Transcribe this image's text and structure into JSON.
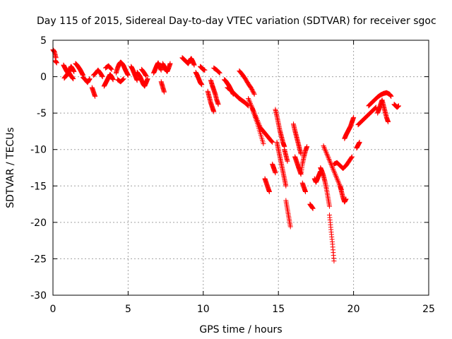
{
  "chart_data": {
    "type": "scatter",
    "title": "Day 115 of 2015, Sidereal Day-to-day VTEC variation (SDTVAR) for receiver sgoc",
    "xlabel": "GPS time / hours",
    "ylabel": "SDTVAR / TECUs",
    "xlim": [
      0,
      25
    ],
    "ylim": [
      -30,
      5
    ],
    "xticks": [
      0,
      5,
      10,
      15,
      20,
      25
    ],
    "yticks": [
      5,
      0,
      -5,
      -10,
      -15,
      -20,
      -25,
      -30
    ],
    "grid": true,
    "marker": "+",
    "series_color": "#ff0000",
    "segments": [
      {
        "x": [
          0.0,
          0.1,
          0.2
        ],
        "y": [
          3.7,
          3.4,
          2.6
        ]
      },
      {
        "x": [
          0.15,
          0.25
        ],
        "y": [
          2.2,
          1.9
        ]
      },
      {
        "x": [
          0.7,
          0.8,
          0.9,
          1.0,
          1.1,
          1.2,
          1.3,
          1.4
        ],
        "y": [
          1.6,
          1.2,
          0.8,
          0.5,
          0.9,
          1.4,
          1.1,
          0.7
        ]
      },
      {
        "x": [
          0.75,
          0.9,
          1.05,
          1.2,
          1.35
        ],
        "y": [
          -0.2,
          0.2,
          0.6,
          0.1,
          -0.3
        ]
      },
      {
        "x": [
          1.5,
          1.6,
          1.7,
          1.8,
          1.9,
          2.0
        ],
        "y": [
          1.8,
          1.6,
          1.3,
          1.0,
          0.6,
          0.2
        ]
      },
      {
        "x": [
          2.0,
          2.15,
          2.3,
          2.45
        ],
        "y": [
          -0.1,
          -0.4,
          -0.8,
          -0.3
        ]
      },
      {
        "x": [
          2.6,
          2.7,
          2.8
        ],
        "y": [
          -1.5,
          -2.1,
          -2.7
        ]
      },
      {
        "x": [
          2.7,
          2.85,
          3.0,
          3.15,
          3.3
        ],
        "y": [
          0.2,
          0.5,
          0.9,
          0.5,
          0.0
        ]
      },
      {
        "x": [
          3.4,
          3.5,
          3.6,
          3.7,
          3.8,
          3.9,
          4.0
        ],
        "y": [
          -1.3,
          -0.9,
          -0.5,
          -0.1,
          0.3,
          0.0,
          -0.4
        ]
      },
      {
        "x": [
          3.5,
          3.7,
          3.9
        ],
        "y": [
          1.2,
          1.5,
          1.0
        ]
      },
      {
        "x": [
          4.2,
          4.3,
          4.4,
          4.5,
          4.6,
          4.7,
          4.8,
          4.9,
          5.0
        ],
        "y": [
          0.5,
          1.2,
          1.7,
          2.0,
          1.8,
          1.5,
          1.0,
          0.6,
          0.2
        ]
      },
      {
        "x": [
          4.3,
          4.5,
          4.7
        ],
        "y": [
          -0.4,
          -0.7,
          -0.3
        ]
      },
      {
        "x": [
          5.2,
          5.3,
          5.4,
          5.5,
          5.6
        ],
        "y": [
          1.4,
          1.0,
          0.5,
          0.0,
          -0.5
        ]
      },
      {
        "x": [
          5.6,
          5.7,
          5.8,
          5.9,
          6.0,
          6.1,
          6.2,
          6.3
        ],
        "y": [
          0.6,
          0.3,
          0.0,
          -0.5,
          -1.0,
          -1.3,
          -0.8,
          -0.3
        ]
      },
      {
        "x": [
          5.9,
          6.05,
          6.2
        ],
        "y": [
          1.0,
          0.6,
          0.1
        ]
      },
      {
        "x": [
          6.7,
          6.8,
          6.9,
          7.0,
          7.1,
          7.2
        ],
        "y": [
          0.5,
          1.0,
          1.5,
          1.9,
          1.4,
          0.9
        ]
      },
      {
        "x": [
          7.2,
          7.3,
          7.4
        ],
        "y": [
          -0.7,
          -1.4,
          -2.1
        ]
      },
      {
        "x": [
          7.3,
          7.4,
          7.5,
          7.6,
          7.7,
          7.8
        ],
        "y": [
          1.8,
          1.4,
          1.0,
          0.7,
          1.2,
          1.8
        ]
      },
      {
        "x": [
          8.6,
          8.7,
          8.8,
          8.9,
          9.0,
          9.1,
          9.2,
          9.3,
          9.4
        ],
        "y": [
          2.6,
          2.4,
          2.2,
          2.0,
          1.8,
          2.2,
          2.5,
          2.1,
          1.6
        ]
      },
      {
        "x": [
          9.5,
          9.6,
          9.7,
          9.8,
          9.9
        ],
        "y": [
          0.6,
          0.2,
          -0.3,
          -0.8,
          -1.1
        ]
      },
      {
        "x": [
          9.8,
          9.9,
          10.0,
          10.1
        ],
        "y": [
          1.4,
          1.2,
          1.0,
          0.9
        ]
      },
      {
        "x": [
          10.3,
          10.4,
          10.5,
          10.6,
          10.7
        ],
        "y": [
          -2.0,
          -2.8,
          -3.6,
          -4.2,
          -4.8
        ]
      },
      {
        "x": [
          10.5,
          10.6,
          10.7,
          10.8,
          10.9,
          11.0
        ],
        "y": [
          -0.5,
          -1.2,
          -1.8,
          -2.4,
          -3.2,
          -3.8
        ]
      },
      {
        "x": [
          10.7,
          10.9,
          11.1
        ],
        "y": [
          1.2,
          0.9,
          0.5
        ]
      },
      {
        "x": [
          11.4,
          11.5,
          11.6,
          11.7,
          11.8,
          11.9,
          12.0
        ],
        "y": [
          -0.4,
          -0.6,
          -0.9,
          -1.2,
          -1.6,
          -2.0,
          -2.4
        ]
      },
      {
        "x": [
          11.6,
          11.8,
          12.0,
          12.2,
          12.4,
          12.6,
          12.8,
          13.0
        ],
        "y": [
          -1.5,
          -1.8,
          -2.2,
          -2.6,
          -3.0,
          -3.3,
          -3.6,
          -4.0
        ]
      },
      {
        "x": [
          12.4,
          12.6,
          12.8,
          13.0,
          13.2,
          13.4
        ],
        "y": [
          0.8,
          0.3,
          -0.3,
          -1.0,
          -1.6,
          -2.4
        ]
      },
      {
        "x": [
          13.0,
          13.2,
          13.4,
          13.6,
          13.8,
          14.0,
          14.2,
          14.4,
          14.6
        ],
        "y": [
          -3.0,
          -4.0,
          -5.0,
          -6.0,
          -7.0,
          -7.5,
          -8.0,
          -8.5,
          -9.0
        ]
      },
      {
        "x": [
          13.2,
          13.4,
          13.6,
          13.8,
          14.0
        ],
        "y": [
          -4.0,
          -5.2,
          -6.4,
          -7.8,
          -9.2
        ]
      },
      {
        "x": [
          14.1,
          14.2,
          14.3,
          14.4
        ],
        "y": [
          -14.0,
          -14.6,
          -15.2,
          -15.8
        ]
      },
      {
        "x": [
          14.6,
          14.7,
          14.8
        ],
        "y": [
          -12.0,
          -12.6,
          -13.2
        ]
      },
      {
        "x": [
          14.8,
          14.9,
          15.0,
          15.1,
          15.2,
          15.3,
          15.4
        ],
        "y": [
          -4.5,
          -5.4,
          -6.4,
          -7.4,
          -8.2,
          -9.0,
          -9.6
        ]
      },
      {
        "x": [
          14.9,
          15.0,
          15.1,
          15.2,
          15.3,
          15.4,
          15.5
        ],
        "y": [
          -9.0,
          -10.0,
          -11.0,
          -12.0,
          -13.0,
          -14.0,
          -15.0
        ]
      },
      {
        "x": [
          15.4,
          15.5,
          15.6
        ],
        "y": [
          -10.0,
          -10.8,
          -11.6
        ]
      },
      {
        "x": [
          15.5,
          15.6,
          15.7,
          15.8
        ],
        "y": [
          -17.0,
          -18.2,
          -19.4,
          -20.6
        ]
      },
      {
        "x": [
          16.0,
          16.1,
          16.2,
          16.3,
          16.4,
          16.5
        ],
        "y": [
          -6.5,
          -7.4,
          -8.2,
          -9.0,
          -9.8,
          -10.6
        ]
      },
      {
        "x": [
          16.1,
          16.2,
          16.3,
          16.4,
          16.5,
          16.6,
          16.7,
          16.8,
          16.9
        ],
        "y": [
          -11.0,
          -11.6,
          -12.2,
          -12.8,
          -13.4,
          -12.0,
          -11.0,
          -10.2,
          -9.6
        ]
      },
      {
        "x": [
          16.6,
          16.7,
          16.8
        ],
        "y": [
          -14.6,
          -15.2,
          -15.8
        ]
      },
      {
        "x": [
          17.1,
          17.2,
          17.3
        ],
        "y": [
          -17.5,
          -17.8,
          -18.1
        ]
      },
      {
        "x": [
          17.4,
          17.5,
          17.6,
          17.7,
          17.8
        ],
        "y": [
          -14.0,
          -14.5,
          -14.0,
          -13.5,
          -13.0
        ]
      },
      {
        "x": [
          17.8,
          17.9,
          18.0,
          18.1,
          18.2,
          18.3,
          18.4
        ],
        "y": [
          -12.5,
          -13.0,
          -13.6,
          -14.4,
          -15.4,
          -16.6,
          -17.8
        ]
      },
      {
        "x": [
          18.4,
          18.5,
          18.6,
          18.7
        ],
        "y": [
          -19.0,
          -21.0,
          -23.0,
          -25.3
        ]
      },
      {
        "x": [
          18.0,
          18.2,
          18.4,
          18.6,
          18.8,
          19.0,
          19.2
        ],
        "y": [
          -9.5,
          -10.5,
          -11.5,
          -12.5,
          -13.5,
          -14.5,
          -15.5
        ]
      },
      {
        "x": [
          18.7,
          18.9,
          19.1,
          19.3,
          19.5,
          19.7,
          19.9
        ],
        "y": [
          -12.0,
          -11.8,
          -12.2,
          -12.6,
          -12.2,
          -11.6,
          -11.0
        ]
      },
      {
        "x": [
          19.1,
          19.2,
          19.3,
          19.4,
          19.5
        ],
        "y": [
          -15.0,
          -15.8,
          -16.6,
          -17.2,
          -16.8
        ]
      },
      {
        "x": [
          19.4,
          19.5,
          19.6,
          19.7,
          19.8,
          19.9,
          20.0
        ],
        "y": [
          -8.5,
          -8.0,
          -7.6,
          -7.2,
          -6.8,
          -6.2,
          -5.6
        ]
      },
      {
        "x": [
          20.2,
          20.3,
          20.4
        ],
        "y": [
          -9.8,
          -9.4,
          -9.0
        ]
      },
      {
        "x": [
          20.3,
          20.5,
          20.7,
          20.9,
          21.1,
          21.3,
          21.5
        ],
        "y": [
          -6.6,
          -6.2,
          -5.8,
          -5.4,
          -5.0,
          -4.6,
          -4.2
        ]
      },
      {
        "x": [
          21.0,
          21.2,
          21.4,
          21.6,
          21.8,
          22.0,
          22.2,
          22.4,
          22.5
        ],
        "y": [
          -4.0,
          -3.6,
          -3.2,
          -2.8,
          -2.5,
          -2.3,
          -2.2,
          -2.4,
          -2.7
        ]
      },
      {
        "x": [
          21.6,
          21.7,
          21.8,
          21.9,
          22.0,
          22.1,
          22.2,
          22.3
        ],
        "y": [
          -5.0,
          -4.4,
          -3.8,
          -3.2,
          -4.0,
          -4.8,
          -5.6,
          -6.2
        ]
      },
      {
        "x": [
          22.7,
          22.8,
          22.9,
          23.0
        ],
        "y": [
          -3.8,
          -4.0,
          -4.2,
          -4.0
        ]
      }
    ]
  }
}
